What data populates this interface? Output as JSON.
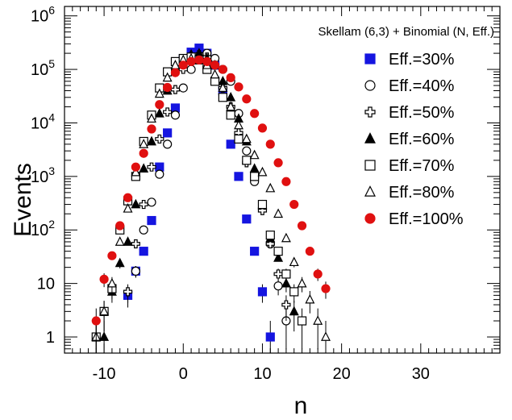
{
  "chart_data": {
    "type": "scatter",
    "title": "",
    "annotation": "Skellam (6,3) + Binomial (N, Eff.)",
    "xlabel": "n",
    "ylabel": "Events",
    "xlim": [
      -15,
      40
    ],
    "ylim": [
      0.5,
      1500000
    ],
    "yscale": "log",
    "x_ticks": [
      -10,
      0,
      10,
      20,
      30
    ],
    "x_tick_labels": [
      "-10",
      "0",
      "10",
      "20",
      "30"
    ],
    "y_ticks": [
      1,
      10,
      100,
      1000,
      10000,
      100000,
      1000000
    ],
    "y_tick_labels": [
      {
        "base": "1",
        "exp": ""
      },
      {
        "base": "10",
        "exp": ""
      },
      {
        "base": "10",
        "exp": "2"
      },
      {
        "base": "10",
        "exp": "3"
      },
      {
        "base": "10",
        "exp": "4"
      },
      {
        "base": "10",
        "exp": "5"
      },
      {
        "base": "10",
        "exp": "6"
      }
    ],
    "grid": false,
    "legend_position": "top-right",
    "series": [
      {
        "name": "Eff.=30%",
        "marker": "square",
        "filled": true,
        "color": "#1515e0",
        "x": [
          -7,
          -6,
          -5,
          -4,
          -3,
          -2,
          -1,
          0,
          1,
          2,
          3,
          4,
          5,
          6,
          7,
          8,
          9,
          10,
          11
        ],
        "y": [
          6,
          17,
          40,
          150,
          1500,
          6500,
          19000,
          150000,
          210000,
          250000,
          200000,
          120000,
          40000,
          4000,
          1000,
          160,
          40,
          7,
          1
        ]
      },
      {
        "name": "Eff.=40%",
        "marker": "circle",
        "filled": false,
        "color": "#000000",
        "x": [
          -6,
          -5,
          -4,
          -3,
          -2,
          -1,
          0,
          1,
          2,
          3,
          4,
          5,
          6,
          7,
          8,
          9,
          10,
          11,
          12,
          13
        ],
        "y": [
          17,
          100,
          330,
          1100,
          4000,
          14000,
          45000,
          100000,
          180000,
          200000,
          160000,
          100000,
          60000,
          15000,
          3000,
          800,
          260,
          55,
          9,
          2
        ]
      },
      {
        "name": "Eff.=50%",
        "marker": "cross",
        "filled": false,
        "color": "#000000",
        "x": [
          -7,
          -6,
          -5,
          -4,
          -3,
          -2,
          -1,
          0,
          1,
          2,
          3,
          4,
          5,
          6,
          7,
          8,
          9,
          10,
          11,
          12,
          13
        ],
        "y": [
          7,
          55,
          300,
          1500,
          5000,
          16000,
          42000,
          100000,
          160000,
          190000,
          170000,
          120000,
          45000,
          20000,
          6500,
          1800,
          1000,
          230,
          55,
          15,
          4
        ]
      },
      {
        "name": "Eff.=60%",
        "marker": "triangle",
        "filled": true,
        "color": "#000000",
        "x": [
          -10,
          -9,
          -8,
          -7,
          -6,
          -5,
          -4,
          -3,
          -2,
          -1,
          0,
          1,
          2,
          3,
          4,
          5,
          6,
          7,
          8,
          9,
          10,
          11,
          12,
          13,
          14
        ],
        "y": [
          1,
          7,
          24,
          60,
          300,
          1400,
          4500,
          15000,
          40000,
          110000,
          150000,
          190000,
          200000,
          160000,
          120000,
          60000,
          30000,
          12000,
          4500,
          1400,
          290,
          70,
          30,
          10,
          3
        ]
      },
      {
        "name": "Eff.=70%",
        "marker": "square",
        "filled": false,
        "color": "#000000",
        "x": [
          -11,
          -10,
          -9,
          -8,
          -7,
          -6,
          -5,
          -4,
          -3,
          -2,
          -1,
          0,
          1,
          2,
          3,
          4,
          5,
          6,
          7,
          8,
          9,
          10,
          11,
          12,
          13,
          14,
          15
        ],
        "y": [
          1,
          3,
          8,
          100,
          350,
          1000,
          4500,
          14000,
          45000,
          90000,
          140000,
          160000,
          170000,
          150000,
          100000,
          60000,
          30000,
          14000,
          5000,
          2000,
          1000,
          300,
          80,
          40,
          15,
          7,
          2
        ]
      },
      {
        "name": "Eff.=80%",
        "marker": "triangle",
        "filled": false,
        "color": "#000000",
        "x": [
          -11,
          -10,
          -9,
          -8,
          -7,
          -6,
          -5,
          -4,
          -3,
          -2,
          -1,
          0,
          1,
          2,
          3,
          4,
          5,
          6,
          7,
          8,
          9,
          10,
          11,
          12,
          13,
          14,
          15,
          16,
          17,
          18
        ],
        "y": [
          1,
          3,
          10,
          60,
          250,
          1200,
          4000,
          12000,
          35000,
          70000,
          120000,
          150000,
          160000,
          150000,
          120000,
          80000,
          45000,
          20000,
          9000,
          5000,
          2500,
          1200,
          600,
          200,
          70,
          25,
          10,
          5,
          2,
          1
        ]
      },
      {
        "name": "Eff.=100%",
        "marker": "circle",
        "filled": true,
        "color": "#e01010",
        "x": [
          -11,
          -10,
          -9,
          -8,
          -7,
          -6,
          -5,
          -4,
          -3,
          -2,
          -1,
          0,
          1,
          2,
          3,
          4,
          5,
          6,
          7,
          8,
          9,
          10,
          11,
          12,
          13,
          14,
          15,
          16,
          17,
          18
        ],
        "y": [
          2,
          12,
          33,
          120,
          400,
          1500,
          2700,
          7700,
          22000,
          46000,
          87000,
          120000,
          140000,
          150000,
          140000,
          120000,
          100000,
          70000,
          47000,
          28000,
          15000,
          8000,
          4000,
          1800,
          800,
          300,
          120,
          40,
          15,
          8
        ]
      }
    ]
  }
}
